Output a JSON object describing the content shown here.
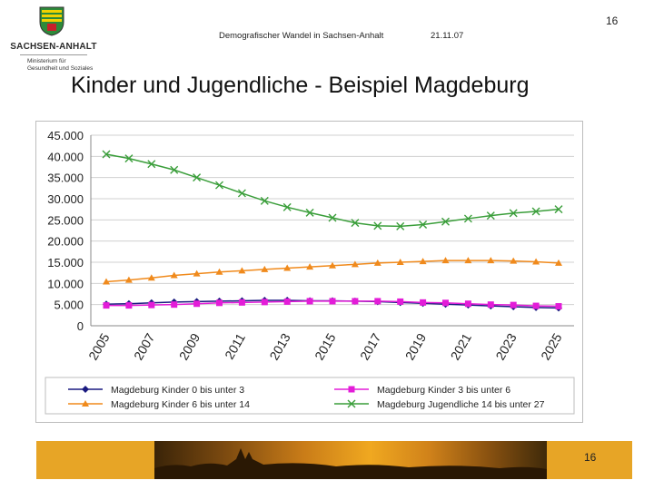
{
  "header": {
    "title": "Demografischer Wandel in Sachsen-Anhalt",
    "date": "21.11.07",
    "page_number": "16"
  },
  "logo": {
    "brand": "SACHSEN-ANHALT",
    "subtitle_line1": "Ministerium für",
    "subtitle_line2": "Gesundheit und Soziales"
  },
  "slide": {
    "title": "Kinder und Jugendliche - Beispiel Magdeburg"
  },
  "footer": {
    "page_number": "16"
  },
  "colors": {
    "series_0_3": "#1a1a80",
    "series_3_6": "#e31cd8",
    "series_6_14": "#f08a1c",
    "series_14_27": "#3a9e3a",
    "grid": "#d0d0d0"
  },
  "chart_data": {
    "type": "line",
    "title": "",
    "xlabel": "",
    "ylabel": "",
    "ylim": [
      0,
      45000
    ],
    "y_ticks": [
      "0",
      "5.000",
      "10.000",
      "15.000",
      "20.000",
      "25.000",
      "30.000",
      "35.000",
      "40.000",
      "45.000"
    ],
    "x": [
      2005,
      2006,
      2007,
      2008,
      2009,
      2010,
      2011,
      2012,
      2013,
      2014,
      2015,
      2016,
      2017,
      2018,
      2019,
      2020,
      2021,
      2022,
      2023,
      2024,
      2025
    ],
    "x_tick_labels": [
      "2005",
      "2007",
      "2009",
      "2011",
      "2013",
      "2015",
      "2017",
      "2019",
      "2021",
      "2023",
      "2025"
    ],
    "series": [
      {
        "name": "Magdeburg Kinder 0 bis unter 3",
        "marker": "diamond",
        "color": "#1a1a80",
        "values": [
          5100,
          5200,
          5400,
          5600,
          5700,
          5800,
          5900,
          6000,
          6000,
          5900,
          5900,
          5800,
          5700,
          5500,
          5300,
          5100,
          4900,
          4700,
          4500,
          4300,
          4200
        ]
      },
      {
        "name": "Magdeburg Kinder 3 bis unter 6",
        "marker": "square",
        "color": "#e31cd8",
        "values": [
          4800,
          4800,
          4900,
          5000,
          5200,
          5400,
          5500,
          5600,
          5700,
          5800,
          5800,
          5800,
          5800,
          5700,
          5500,
          5400,
          5200,
          5000,
          4900,
          4700,
          4600
        ]
      },
      {
        "name": "Magdeburg Kinder 6 bis unter 14",
        "marker": "triangle",
        "color": "#f08a1c",
        "values": [
          10400,
          10800,
          11300,
          11900,
          12300,
          12700,
          13000,
          13300,
          13600,
          13900,
          14200,
          14500,
          14800,
          15000,
          15200,
          15400,
          15400,
          15400,
          15300,
          15100,
          14800
        ]
      },
      {
        "name": "Magdeburg Jugendliche 14 bis unter 27",
        "marker": "x",
        "color": "#3a9e3a",
        "values": [
          40500,
          39500,
          38200,
          36800,
          35000,
          33200,
          31300,
          29500,
          28000,
          26700,
          25500,
          24300,
          23600,
          23500,
          23900,
          24600,
          25300,
          26000,
          26600,
          27000,
          27500
        ]
      }
    ],
    "legend_placement": "bottom"
  }
}
